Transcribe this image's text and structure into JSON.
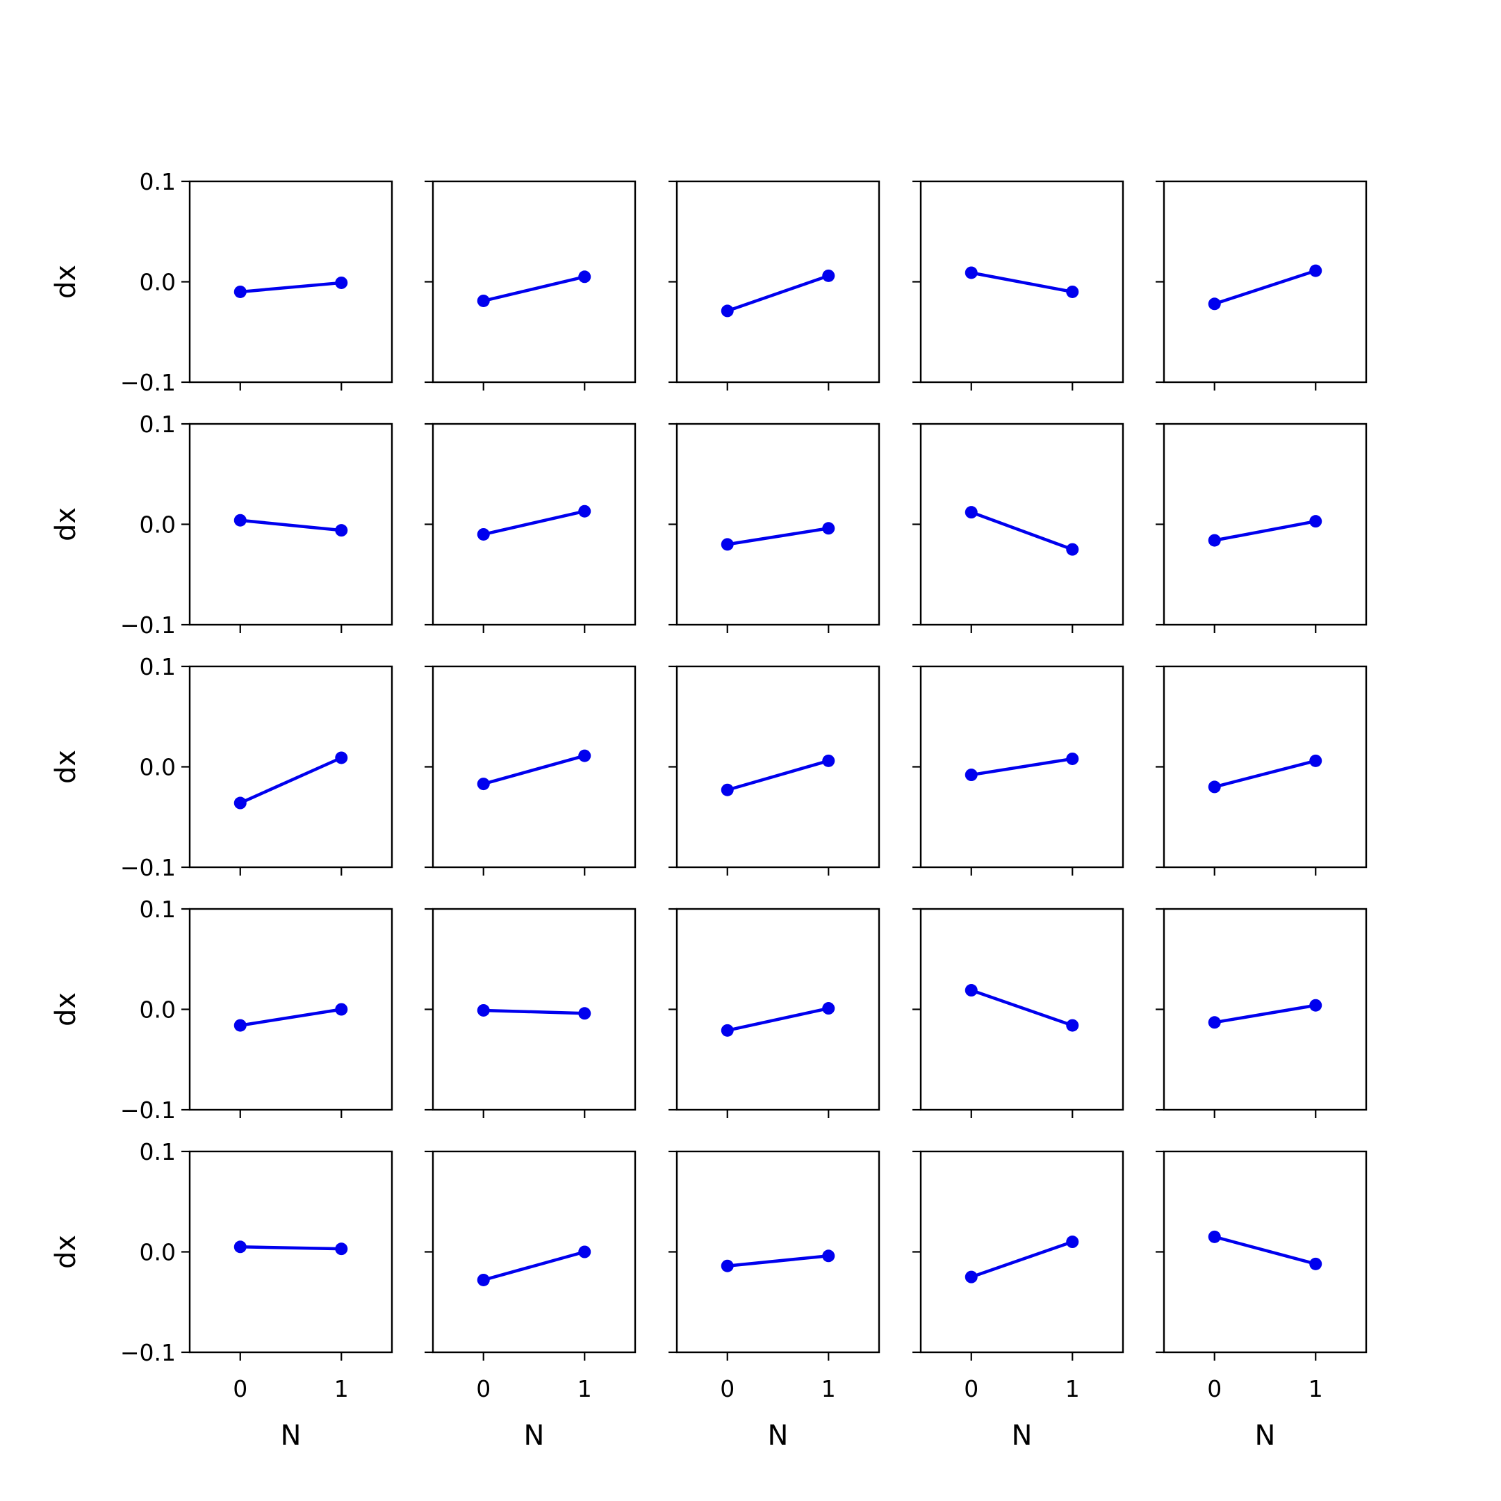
{
  "colors": {
    "line": "#0000ee",
    "axes": "#000000",
    "background": "#ffffff"
  },
  "chart_data": {
    "type": "line",
    "layout": "5x5 grid of small multiples",
    "sharex": true,
    "sharey": true,
    "xlabel": "N",
    "ylabel": "dx",
    "x": [
      0,
      1
    ],
    "xticks": [
      "0",
      "1"
    ],
    "xlim": [
      -0.5,
      1.5
    ],
    "yticks": [
      "0.1",
      "0.0",
      "−0.1"
    ],
    "ylim": [
      -0.1,
      0.1
    ],
    "marker": "circle",
    "grid": false,
    "legend": "none",
    "panels": [
      {
        "y": [
          -0.01,
          -0.001
        ]
      },
      {
        "y": [
          -0.019,
          0.005
        ]
      },
      {
        "y": [
          -0.029,
          0.006
        ]
      },
      {
        "y": [
          0.009,
          -0.01
        ]
      },
      {
        "y": [
          -0.022,
          0.011
        ]
      },
      {
        "y": [
          0.004,
          -0.006
        ]
      },
      {
        "y": [
          -0.01,
          0.013
        ]
      },
      {
        "y": [
          -0.02,
          -0.004
        ]
      },
      {
        "y": [
          0.012,
          -0.025
        ]
      },
      {
        "y": [
          -0.016,
          0.003
        ]
      },
      {
        "y": [
          -0.036,
          0.009
        ]
      },
      {
        "y": [
          -0.017,
          0.011
        ]
      },
      {
        "y": [
          -0.023,
          0.006
        ]
      },
      {
        "y": [
          -0.008,
          0.008
        ]
      },
      {
        "y": [
          -0.02,
          0.006
        ]
      },
      {
        "y": [
          -0.016,
          0.0
        ]
      },
      {
        "y": [
          -0.001,
          -0.004
        ]
      },
      {
        "y": [
          -0.021,
          0.001
        ]
      },
      {
        "y": [
          0.019,
          -0.016
        ]
      },
      {
        "y": [
          -0.013,
          0.004
        ]
      },
      {
        "y": [
          0.005,
          0.003
        ]
      },
      {
        "y": [
          -0.028,
          0.0
        ]
      },
      {
        "y": [
          -0.014,
          -0.004
        ]
      },
      {
        "y": [
          -0.025,
          0.01
        ]
      },
      {
        "y": [
          0.015,
          -0.012
        ]
      }
    ]
  }
}
